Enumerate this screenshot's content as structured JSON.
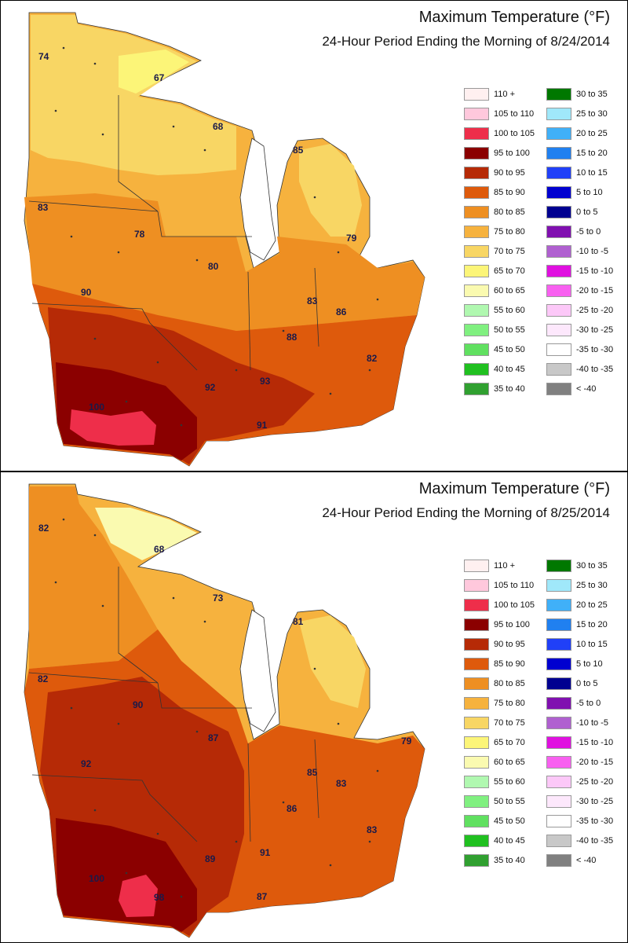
{
  "panels": [
    {
      "title": "Maximum Temperature (°F)",
      "subtitle": "24-Hour Period Ending the Morning of 8/24/2014",
      "labels": [
        "74",
        "67",
        "68",
        "85",
        "83",
        "78",
        "79",
        "80",
        "90",
        "83",
        "86",
        "88",
        "82",
        "92",
        "93",
        "100",
        "91"
      ]
    },
    {
      "title": "Maximum Temperature (°F)",
      "subtitle": "24-Hour Period Ending the Morning of 8/25/2014",
      "labels": [
        "82",
        "68",
        "73",
        "81",
        "82",
        "90",
        "87",
        "79",
        "92",
        "85",
        "83",
        "86",
        "83",
        "89",
        "91",
        "100",
        "98",
        "87"
      ]
    }
  ],
  "legend": [
    {
      "label": "110 +",
      "color": "#fff0f0"
    },
    {
      "label": "105 to 110",
      "color": "#ffc8dc"
    },
    {
      "label": "100 to 105",
      "color": "#ee2e4a"
    },
    {
      "label": "95 to 100",
      "color": "#8b0000"
    },
    {
      "label": "90 to 95",
      "color": "#b62a06"
    },
    {
      "label": "85 to 90",
      "color": "#de5a0c"
    },
    {
      "label": "80 to 85",
      "color": "#ee8f22"
    },
    {
      "label": "75 to 80",
      "color": "#f6b23e"
    },
    {
      "label": "70 to 75",
      "color": "#f8d664"
    },
    {
      "label": "65 to 70",
      "color": "#fcf578"
    },
    {
      "label": "60 to 65",
      "color": "#fafab0"
    },
    {
      "label": "55 to 60",
      "color": "#b0f8b0"
    },
    {
      "label": "50 to 55",
      "color": "#80f080"
    },
    {
      "label": "45 to 50",
      "color": "#60e060"
    },
    {
      "label": "40 to 45",
      "color": "#20c020"
    },
    {
      "label": "35 to 40",
      "color": "#30a030"
    },
    {
      "label": "30 to 35",
      "color": "#007800"
    },
    {
      "label": "25 to 30",
      "color": "#a0e8fa"
    },
    {
      "label": "20 to 25",
      "color": "#40b0f8"
    },
    {
      "label": "15 to 20",
      "color": "#2080f0"
    },
    {
      "label": "10 to 15",
      "color": "#2040f8"
    },
    {
      "label": "5 to 10",
      "color": "#0000d0"
    },
    {
      "label": "0 to 5",
      "color": "#000090"
    },
    {
      "label": "-5 to 0",
      "color": "#8010b0"
    },
    {
      "label": "-10 to -5",
      "color": "#b060d0"
    },
    {
      "label": "-15 to -10",
      "color": "#e010e0"
    },
    {
      "label": "-20 to -15",
      "color": "#f860f0"
    },
    {
      "label": "-25 to -20",
      "color": "#fcc8f8"
    },
    {
      "label": "-30 to -25",
      "color": "#fde8fc"
    },
    {
      "label": "-35 to -30",
      "color": "#ffffff"
    },
    {
      "label": "-40 to -35",
      "color": "#c8c8c8"
    },
    {
      "label": "< -40",
      "color": "#808080"
    }
  ]
}
